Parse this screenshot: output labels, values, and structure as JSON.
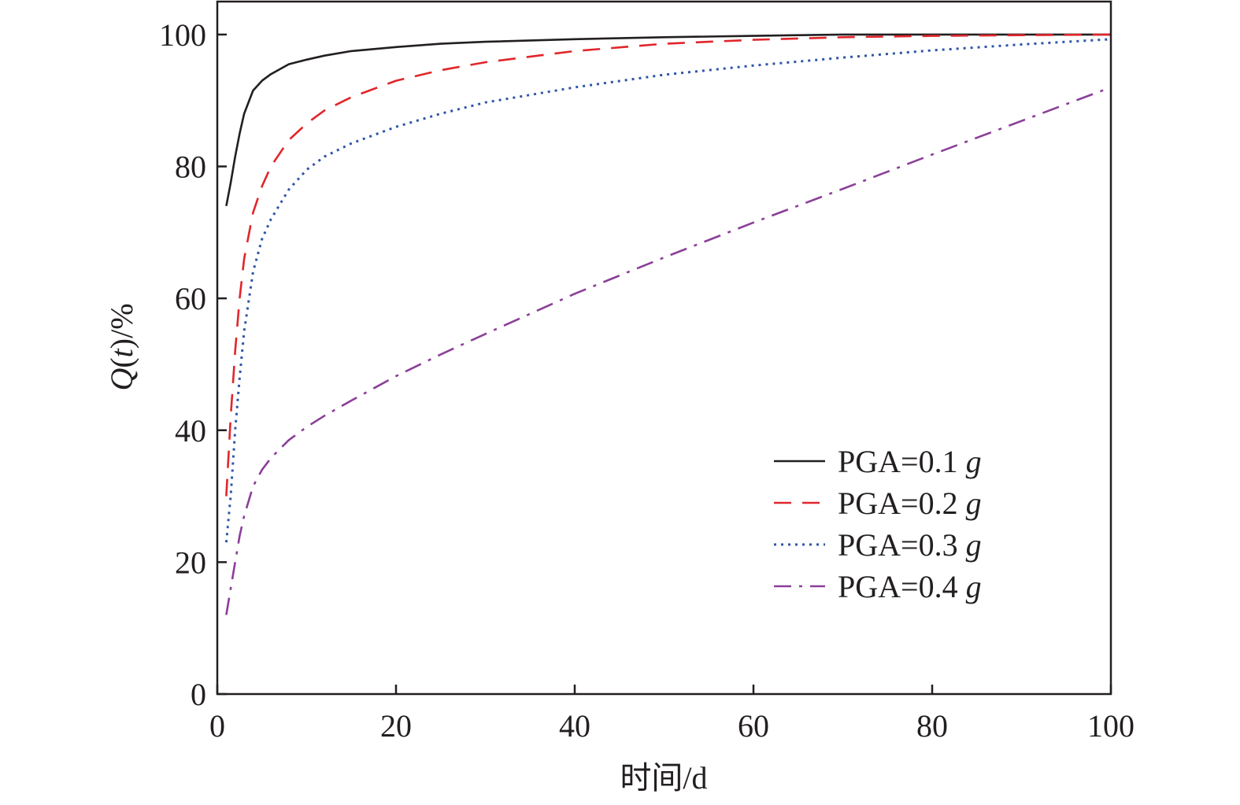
{
  "chart_data": {
    "type": "line",
    "title": "",
    "xlabel": "时间/d",
    "ylabel": {
      "italic": "Q",
      "open": "(",
      "italic_var": "t",
      "close": ")/%"
    },
    "xlim": [
      0,
      100
    ],
    "ylim": [
      0,
      105
    ],
    "x_ticks": [
      0,
      20,
      40,
      60,
      80,
      100
    ],
    "y_ticks": [
      0,
      20,
      40,
      60,
      80,
      100
    ],
    "grid": false,
    "legend_position": "lower-right",
    "series": [
      {
        "name": "PGA=0.1",
        "unit": "g",
        "color": "#231f20",
        "style": "solid",
        "x": [
          1,
          1.5,
          2,
          2.5,
          3,
          4,
          5,
          6,
          8,
          10,
          12,
          15,
          20,
          25,
          30,
          40,
          50,
          60,
          65,
          70,
          80,
          90,
          100
        ],
        "y": [
          74,
          77.5,
          81.5,
          85,
          88,
          91.5,
          93,
          94,
          95.5,
          96.2,
          96.8,
          97.5,
          98.1,
          98.6,
          98.9,
          99.3,
          99.6,
          99.8,
          99.9,
          100,
          100,
          100,
          100
        ]
      },
      {
        "name": "PGA=0.2",
        "unit": "g",
        "color": "#e0262b",
        "style": "dash",
        "x": [
          1,
          1.5,
          2,
          2.5,
          3,
          4,
          5,
          6,
          8,
          10,
          12,
          15,
          20,
          25,
          30,
          40,
          50,
          60,
          70,
          80,
          90,
          100
        ],
        "y": [
          30,
          42,
          52,
          60,
          66,
          73,
          77,
          80,
          84,
          86.5,
          88.5,
          90.5,
          93,
          94.6,
          95.8,
          97.5,
          98.6,
          99.2,
          99.6,
          99.8,
          99.9,
          100
        ]
      },
      {
        "name": "PGA=0.3",
        "unit": "g",
        "color": "#2e56a6",
        "style": "dot",
        "x": [
          1,
          1.5,
          2,
          2.5,
          3,
          4,
          5,
          6,
          8,
          10,
          12,
          15,
          20,
          25,
          30,
          40,
          50,
          60,
          70,
          80,
          90,
          100
        ],
        "y": [
          23,
          30,
          40,
          48,
          55,
          64,
          69,
          72,
          76.5,
          79.5,
          81.5,
          83.5,
          86,
          88,
          89.7,
          92,
          93.9,
          95.3,
          96.5,
          97.6,
          98.5,
          99.3
        ]
      },
      {
        "name": "PGA=0.4",
        "unit": "g",
        "color": "#8b3f98",
        "style": "dashdot",
        "x": [
          1,
          1.5,
          2,
          2.5,
          3,
          4,
          5,
          6,
          8,
          10,
          12,
          15,
          20,
          25,
          30,
          40,
          50,
          60,
          70,
          80,
          90,
          100
        ],
        "y": [
          12,
          16,
          20,
          24,
          27,
          31.5,
          34,
          35.8,
          38.5,
          40.5,
          42.2,
          44.5,
          48.2,
          51.5,
          54.6,
          60.7,
          66.2,
          71.5,
          76.6,
          81.8,
          86.9,
          92
        ]
      }
    ]
  }
}
